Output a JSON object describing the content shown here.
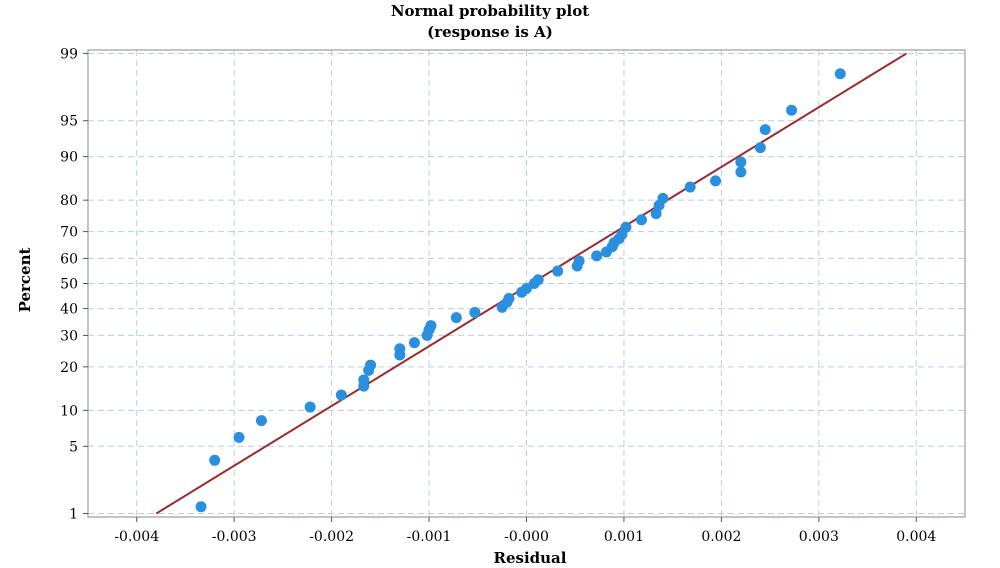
{
  "chart_data": {
    "type": "scatter",
    "title": "Normal probability plot",
    "subtitle": "(response is A)",
    "xlabel": "Residual",
    "ylabel": "Percent",
    "xlim": [
      -0.0045,
      0.0045
    ],
    "x_ticks": [
      -0.004,
      -0.003,
      -0.002,
      -0.001,
      0,
      0.001,
      0.002,
      0.003,
      0.004
    ],
    "x_tick_labels": [
      "-0.004",
      "-0.003",
      "-0.002",
      "-0.001",
      "-0.000",
      "0.001",
      "0.002",
      "0.003",
      "0.004"
    ],
    "y_scale": "normal-probability",
    "ylim": [
      1,
      99
    ],
    "y_ticks": [
      1,
      5,
      10,
      20,
      30,
      40,
      50,
      60,
      70,
      80,
      90,
      95,
      99
    ],
    "y_tick_labels": [
      "1",
      "5",
      "10",
      "20",
      "30",
      "40",
      "50",
      "60",
      "70",
      "80",
      "90",
      "95",
      "99"
    ],
    "grid": true,
    "fit_line": {
      "x": [
        -0.0038,
        0.0039
      ],
      "y": [
        1,
        99
      ],
      "color": "#9b2b2e"
    },
    "point_color": "#2b8fe0",
    "points": [
      {
        "x": -0.00334,
        "y": 1.2
      },
      {
        "x": -0.0032,
        "y": 3.7
      },
      {
        "x": -0.00295,
        "y": 6.0
      },
      {
        "x": -0.00272,
        "y": 8.3
      },
      {
        "x": -0.00222,
        "y": 10.6
      },
      {
        "x": -0.0019,
        "y": 13.0
      },
      {
        "x": -0.00167,
        "y": 15.0
      },
      {
        "x": -0.00167,
        "y": 16.5
      },
      {
        "x": -0.00162,
        "y": 19.0
      },
      {
        "x": -0.0016,
        "y": 20.5
      },
      {
        "x": -0.0013,
        "y": 23.5
      },
      {
        "x": -0.0013,
        "y": 25.5
      },
      {
        "x": -0.00115,
        "y": 27.5
      },
      {
        "x": -0.00102,
        "y": 30.0
      },
      {
        "x": -0.001,
        "y": 32.0
      },
      {
        "x": -0.00098,
        "y": 33.5
      },
      {
        "x": -0.00072,
        "y": 36.5
      },
      {
        "x": -0.00053,
        "y": 38.5
      },
      {
        "x": -0.00025,
        "y": 40.5
      },
      {
        "x": -0.0002,
        "y": 42.5
      },
      {
        "x": -0.00018,
        "y": 44.0
      },
      {
        "x": -5e-05,
        "y": 46.5
      },
      {
        "x": 0.0,
        "y": 48.0
      },
      {
        "x": 8e-05,
        "y": 50.0
      },
      {
        "x": 0.00012,
        "y": 51.5
      },
      {
        "x": 0.00032,
        "y": 55.0
      },
      {
        "x": 0.00052,
        "y": 57.0
      },
      {
        "x": 0.00054,
        "y": 59.0
      },
      {
        "x": 0.00072,
        "y": 61.0
      },
      {
        "x": 0.00082,
        "y": 62.5
      },
      {
        "x": 0.00088,
        "y": 64.5
      },
      {
        "x": 0.0009,
        "y": 66.0
      },
      {
        "x": 0.00095,
        "y": 67.5
      },
      {
        "x": 0.00098,
        "y": 69.0
      },
      {
        "x": 0.00102,
        "y": 71.5
      },
      {
        "x": 0.00118,
        "y": 74.0
      },
      {
        "x": 0.00133,
        "y": 76.0
      },
      {
        "x": 0.00136,
        "y": 78.5
      },
      {
        "x": 0.0014,
        "y": 80.5
      },
      {
        "x": 0.00168,
        "y": 83.5
      },
      {
        "x": 0.00194,
        "y": 85.0
      },
      {
        "x": 0.0022,
        "y": 87.0
      },
      {
        "x": 0.0022,
        "y": 89.0
      },
      {
        "x": 0.0024,
        "y": 91.5
      },
      {
        "x": 0.00245,
        "y": 94.0
      },
      {
        "x": 0.00272,
        "y": 96.0
      },
      {
        "x": 0.00322,
        "y": 98.3
      }
    ]
  }
}
